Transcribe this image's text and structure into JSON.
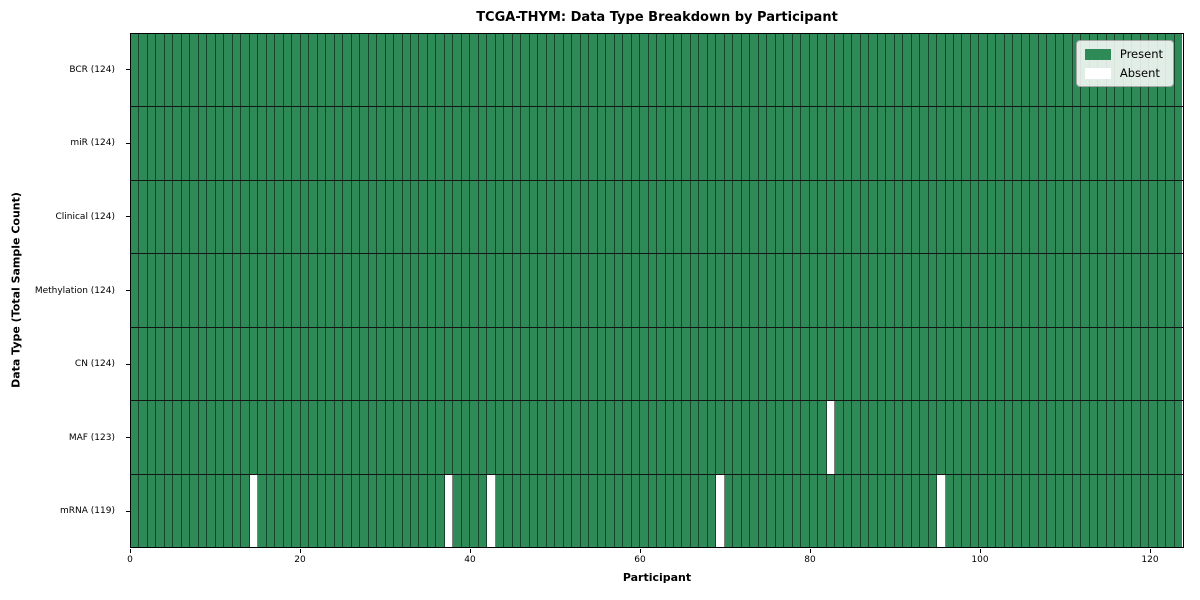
{
  "title": "TCGA-THYM: Data Type Breakdown by Participant",
  "colors": {
    "present": "#2e8b57",
    "absent": "#ffffff",
    "cell_border": "rgba(0,0,0,0.5)",
    "row_border": "#141414",
    "plot_border": "#000000"
  },
  "legend": {
    "items": [
      {
        "label": "Present",
        "color": "#2e8b57"
      },
      {
        "label": "Absent",
        "color": "#ffffff"
      }
    ],
    "position": "upper right"
  },
  "chart_data": {
    "type": "heatmap",
    "title": "TCGA-THYM: Data Type Breakdown by Participant",
    "xlabel": "Participant",
    "ylabel": "Data Type (Total Sample Count)",
    "n_participants": 124,
    "x_range": [
      0,
      124
    ],
    "x_ticks": [
      0,
      20,
      40,
      60,
      80,
      100,
      120
    ],
    "grid": "cell-borders-on",
    "legend_entries": [
      "Present",
      "Absent"
    ],
    "rows": [
      {
        "label": "BCR (124)",
        "data_type": "BCR",
        "total": 124,
        "absent_participants": []
      },
      {
        "label": "miR (124)",
        "data_type": "miR",
        "total": 124,
        "absent_participants": []
      },
      {
        "label": "Clinical (124)",
        "data_type": "Clinical",
        "total": 124,
        "absent_participants": []
      },
      {
        "label": "Methylation (124)",
        "data_type": "Methylation",
        "total": 124,
        "absent_participants": []
      },
      {
        "label": "CN (124)",
        "data_type": "CN",
        "total": 124,
        "absent_participants": []
      },
      {
        "label": "MAF (123)",
        "data_type": "MAF",
        "total": 123,
        "absent_participants": [
          82
        ]
      },
      {
        "label": "mRNA (119)",
        "data_type": "mRNA",
        "total": 119,
        "absent_participants": [
          14,
          37,
          42,
          69,
          95
        ]
      }
    ]
  }
}
